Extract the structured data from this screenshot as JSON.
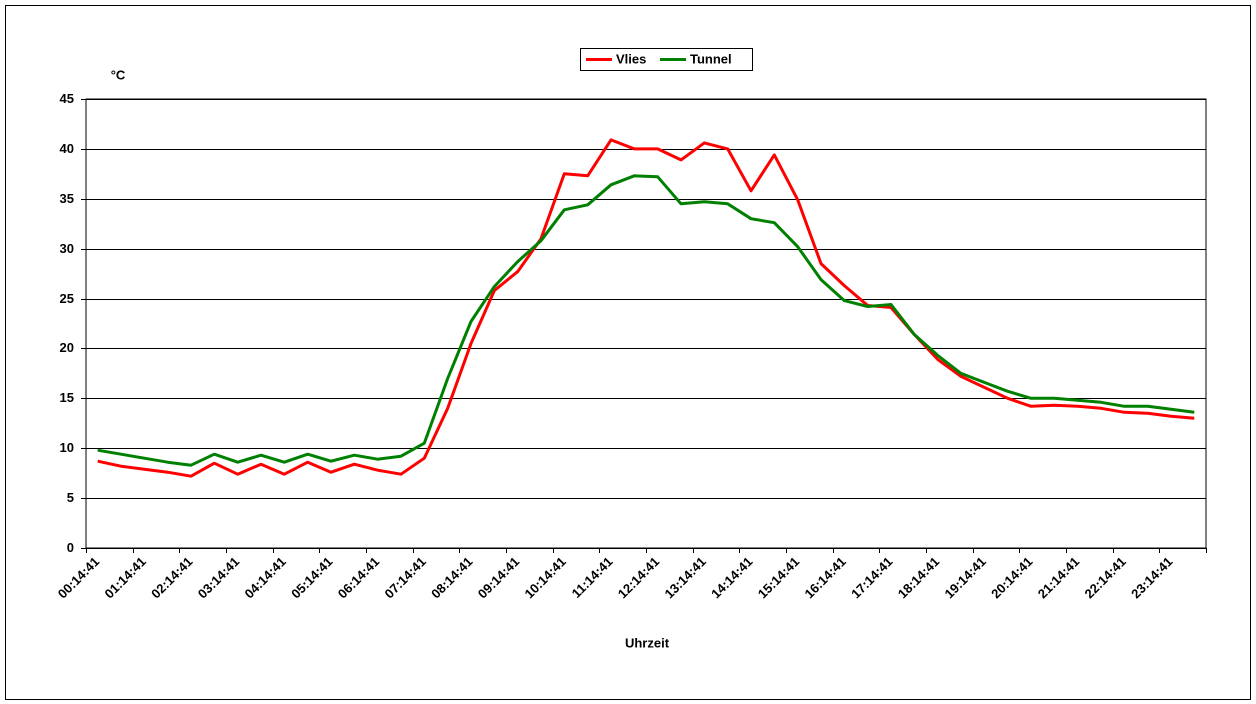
{
  "chart_data": {
    "type": "line",
    "y_label": "°C",
    "x_label": "Uhrzeit",
    "categories": [
      "00:14:41",
      null,
      "01:14:41",
      null,
      "02:14:41",
      null,
      "03:14:41",
      null,
      "04:14:41",
      null,
      "05:14:41",
      null,
      "06:14:41",
      null,
      "07:14:41",
      null,
      "08:14:41",
      null,
      "09:14:41",
      null,
      "10:14:41",
      null,
      "11:14:41",
      null,
      "12:14:41",
      null,
      "13:14:41",
      null,
      "14:14:41",
      null,
      "15:14:41",
      null,
      "16:14:41",
      null,
      "17:14:41",
      null,
      "18:14:41",
      null,
      "19:14:41",
      null,
      "20:14:41",
      null,
      "21:14:41",
      null,
      "22:14:41",
      null,
      "23:14:41",
      null
    ],
    "series": [
      {
        "name": "Vlies",
        "color": "#ff0000",
        "values": [
          8.7,
          8.2,
          7.9,
          7.6,
          7.2,
          8.5,
          7.4,
          8.4,
          7.4,
          8.6,
          7.6,
          8.4,
          7.8,
          7.4,
          9.0,
          14.0,
          20.5,
          25.8,
          27.7,
          31.0,
          37.5,
          37.3,
          40.9,
          40.0,
          40.0,
          38.9,
          40.6,
          40.0,
          35.8,
          39.4,
          34.9,
          28.5,
          26.3,
          24.3,
          24.1,
          21.4,
          18.9,
          17.2,
          16.1,
          15.0,
          14.2,
          14.3,
          14.2,
          14.0,
          13.6,
          13.5,
          13.2,
          13.0
        ]
      },
      {
        "name": "Tunnel",
        "color": "#008000",
        "values": [
          9.8,
          9.4,
          9.0,
          8.6,
          8.3,
          9.4,
          8.6,
          9.3,
          8.6,
          9.4,
          8.7,
          9.3,
          8.9,
          9.2,
          10.5,
          17.0,
          22.7,
          26.2,
          28.7,
          30.8,
          33.9,
          34.4,
          36.4,
          37.3,
          37.2,
          34.5,
          34.7,
          34.5,
          33.0,
          32.6,
          30.2,
          26.9,
          24.8,
          24.2,
          24.4,
          21.4,
          19.3,
          17.5,
          16.6,
          15.7,
          15.0,
          15.0,
          14.8,
          14.6,
          14.2,
          14.2,
          13.9,
          13.6
        ]
      }
    ],
    "ylim": [
      0,
      45
    ],
    "yticks": [
      0,
      5,
      10,
      15,
      20,
      25,
      30,
      35,
      40,
      45
    ],
    "grid": true,
    "legend": "top"
  }
}
